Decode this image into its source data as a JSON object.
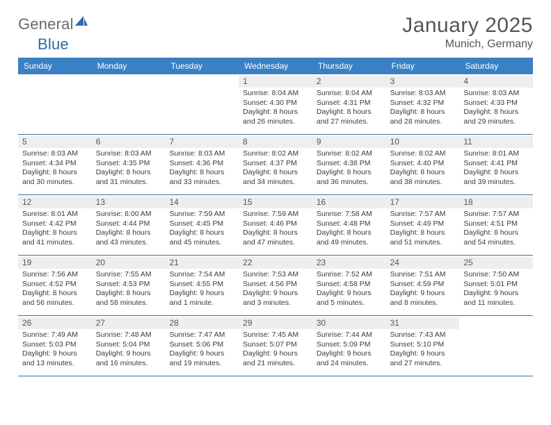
{
  "brand": {
    "text1": "General",
    "text2": "Blue"
  },
  "header": {
    "title": "January 2025",
    "subtitle": "Munich, Germany"
  },
  "colors": {
    "header_bg": "#3a80c4",
    "header_text": "#ffffff",
    "daynum_bg": "#eeeeee",
    "cell_text": "#3b3b3b",
    "rule": "#3a6fa0",
    "title_color": "#555555",
    "brand_gray": "#6a6a6a",
    "brand_blue": "#2f6aa8"
  },
  "dayNames": [
    "Sunday",
    "Monday",
    "Tuesday",
    "Wednesday",
    "Thursday",
    "Friday",
    "Saturday"
  ],
  "weeks": [
    [
      {
        "blank": true
      },
      {
        "blank": true
      },
      {
        "blank": true
      },
      {
        "n": "1",
        "sr": "8:04 AM",
        "ss": "4:30 PM",
        "dl": "8 hours and 26 minutes."
      },
      {
        "n": "2",
        "sr": "8:04 AM",
        "ss": "4:31 PM",
        "dl": "8 hours and 27 minutes."
      },
      {
        "n": "3",
        "sr": "8:03 AM",
        "ss": "4:32 PM",
        "dl": "8 hours and 28 minutes."
      },
      {
        "n": "4",
        "sr": "8:03 AM",
        "ss": "4:33 PM",
        "dl": "8 hours and 29 minutes."
      }
    ],
    [
      {
        "n": "5",
        "sr": "8:03 AM",
        "ss": "4:34 PM",
        "dl": "8 hours and 30 minutes."
      },
      {
        "n": "6",
        "sr": "8:03 AM",
        "ss": "4:35 PM",
        "dl": "8 hours and 31 minutes."
      },
      {
        "n": "7",
        "sr": "8:03 AM",
        "ss": "4:36 PM",
        "dl": "8 hours and 33 minutes."
      },
      {
        "n": "8",
        "sr": "8:02 AM",
        "ss": "4:37 PM",
        "dl": "8 hours and 34 minutes."
      },
      {
        "n": "9",
        "sr": "8:02 AM",
        "ss": "4:38 PM",
        "dl": "8 hours and 36 minutes."
      },
      {
        "n": "10",
        "sr": "8:02 AM",
        "ss": "4:40 PM",
        "dl": "8 hours and 38 minutes."
      },
      {
        "n": "11",
        "sr": "8:01 AM",
        "ss": "4:41 PM",
        "dl": "8 hours and 39 minutes."
      }
    ],
    [
      {
        "n": "12",
        "sr": "8:01 AM",
        "ss": "4:42 PM",
        "dl": "8 hours and 41 minutes."
      },
      {
        "n": "13",
        "sr": "8:00 AM",
        "ss": "4:44 PM",
        "dl": "8 hours and 43 minutes."
      },
      {
        "n": "14",
        "sr": "7:59 AM",
        "ss": "4:45 PM",
        "dl": "8 hours and 45 minutes."
      },
      {
        "n": "15",
        "sr": "7:59 AM",
        "ss": "4:46 PM",
        "dl": "8 hours and 47 minutes."
      },
      {
        "n": "16",
        "sr": "7:58 AM",
        "ss": "4:48 PM",
        "dl": "8 hours and 49 minutes."
      },
      {
        "n": "17",
        "sr": "7:57 AM",
        "ss": "4:49 PM",
        "dl": "8 hours and 51 minutes."
      },
      {
        "n": "18",
        "sr": "7:57 AM",
        "ss": "4:51 PM",
        "dl": "8 hours and 54 minutes."
      }
    ],
    [
      {
        "n": "19",
        "sr": "7:56 AM",
        "ss": "4:52 PM",
        "dl": "8 hours and 56 minutes."
      },
      {
        "n": "20",
        "sr": "7:55 AM",
        "ss": "4:53 PM",
        "dl": "8 hours and 58 minutes."
      },
      {
        "n": "21",
        "sr": "7:54 AM",
        "ss": "4:55 PM",
        "dl": "9 hours and 1 minute."
      },
      {
        "n": "22",
        "sr": "7:53 AM",
        "ss": "4:56 PM",
        "dl": "9 hours and 3 minutes."
      },
      {
        "n": "23",
        "sr": "7:52 AM",
        "ss": "4:58 PM",
        "dl": "9 hours and 5 minutes."
      },
      {
        "n": "24",
        "sr": "7:51 AM",
        "ss": "4:59 PM",
        "dl": "9 hours and 8 minutes."
      },
      {
        "n": "25",
        "sr": "7:50 AM",
        "ss": "5:01 PM",
        "dl": "9 hours and 11 minutes."
      }
    ],
    [
      {
        "n": "26",
        "sr": "7:49 AM",
        "ss": "5:03 PM",
        "dl": "9 hours and 13 minutes."
      },
      {
        "n": "27",
        "sr": "7:48 AM",
        "ss": "5:04 PM",
        "dl": "9 hours and 16 minutes."
      },
      {
        "n": "28",
        "sr": "7:47 AM",
        "ss": "5:06 PM",
        "dl": "9 hours and 19 minutes."
      },
      {
        "n": "29",
        "sr": "7:45 AM",
        "ss": "5:07 PM",
        "dl": "9 hours and 21 minutes."
      },
      {
        "n": "30",
        "sr": "7:44 AM",
        "ss": "5:09 PM",
        "dl": "9 hours and 24 minutes."
      },
      {
        "n": "31",
        "sr": "7:43 AM",
        "ss": "5:10 PM",
        "dl": "9 hours and 27 minutes."
      },
      {
        "blank": true
      }
    ]
  ],
  "labels": {
    "sunrise": "Sunrise:",
    "sunset": "Sunset:",
    "daylight": "Daylight:"
  }
}
